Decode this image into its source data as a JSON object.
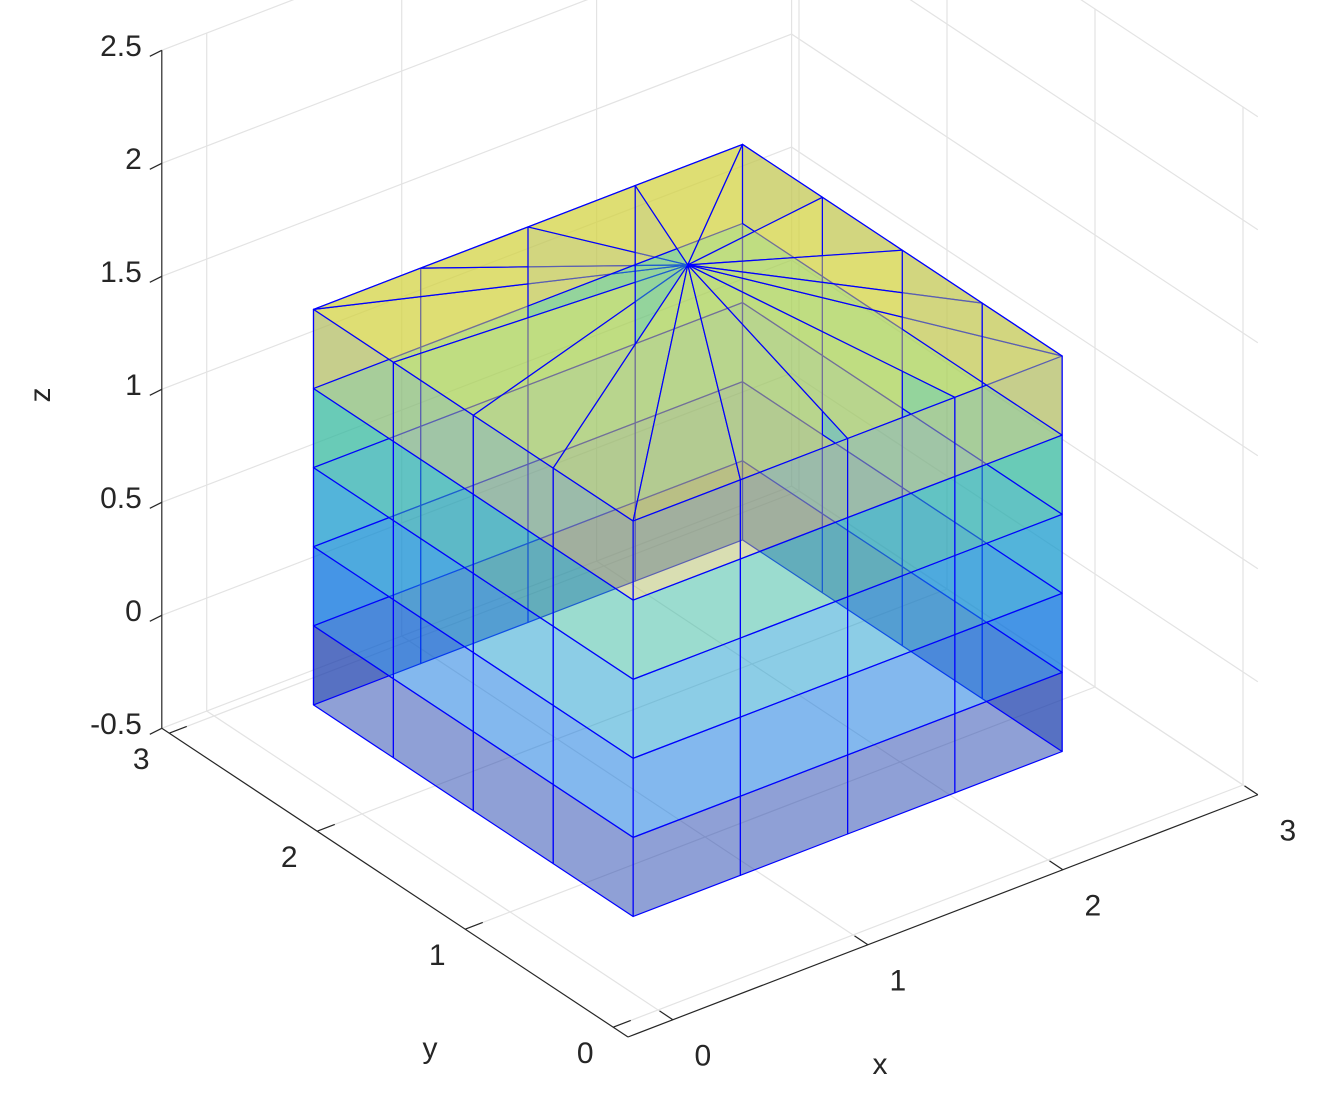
{
  "chart_data": {
    "type": "surface3d",
    "xlabel": "x",
    "ylabel": "y",
    "zlabel": "z",
    "xlim": [
      -0.23,
      3.0
    ],
    "ylim": [
      -0.1,
      3.05
    ],
    "zlim": [
      -0.5,
      2.5
    ],
    "xticks": [
      0,
      1,
      2,
      3
    ],
    "yticks": [
      0,
      1,
      2,
      3
    ],
    "zticks": [
      -0.5,
      0,
      0.5,
      1,
      1.5,
      2,
      2.5
    ],
    "grid": true,
    "edge_color": "#0000ff",
    "face_alpha": 0.5,
    "footprint": {
      "x": [
        0.1,
        0.65,
        1.2,
        1.75,
        2.3,
        2.3,
        2.3,
        2.3,
        2.3,
        1.75,
        1.2,
        0.65,
        0.1,
        0.1,
        0.1,
        0.1
      ],
      "y": [
        0.3,
        0.3,
        0.3,
        0.3,
        0.3,
        0.84,
        1.38,
        1.92,
        2.46,
        2.46,
        2.46,
        2.46,
        2.46,
        1.92,
        1.38,
        0.84
      ]
    },
    "z_levels": [
      -0.25,
      0.1,
      0.45,
      0.8,
      1.15,
      1.5
    ],
    "cap": {
      "x": 1.2,
      "y": 1.38,
      "z": 1.8
    }
  }
}
